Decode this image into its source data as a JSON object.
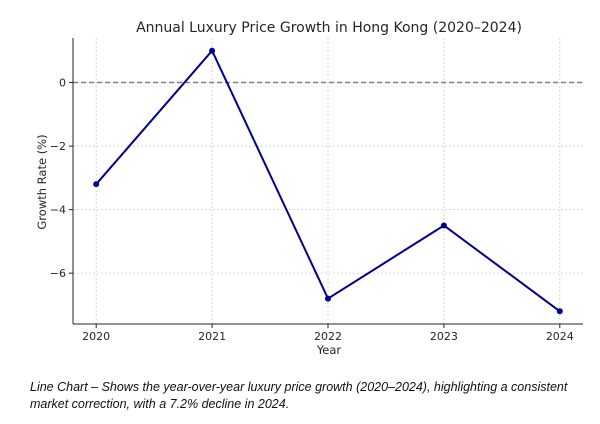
{
  "chart_data": {
    "type": "line",
    "title": "Annual Luxury Price Growth in Hong Kong (2020–2024)",
    "xlabel": "Year",
    "ylabel": "Growth Rate (%)",
    "x": [
      "2020",
      "2021",
      "2022",
      "2023",
      "2024"
    ],
    "series": [
      {
        "values": [
          -3.2,
          1.0,
          -6.8,
          -4.5,
          -7.2
        ],
        "color": "#00008b"
      }
    ],
    "xlim": [
      -0.2,
      4.2
    ],
    "ylim": [
      -7.6,
      1.4
    ],
    "yticks": [
      0,
      -2,
      -4,
      -6
    ],
    "ytick_labels": [
      "0",
      "−2",
      "−4",
      "−6"
    ],
    "reference_line": {
      "y": 0,
      "style": "dashed",
      "color": "#808080"
    },
    "grid": true
  },
  "caption": "Line Chart – Shows the year-over-year luxury price growth (2020–2024), highlighting a consistent market correction, with a 7.2% decline in 2024."
}
